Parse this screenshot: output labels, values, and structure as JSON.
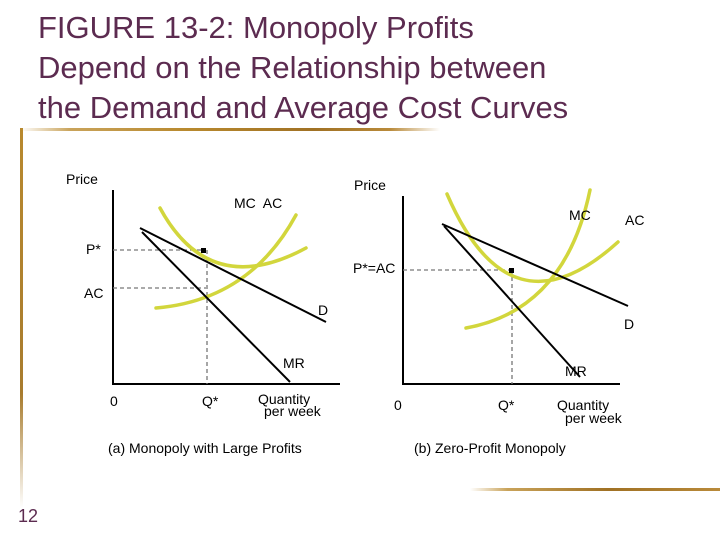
{
  "title": {
    "line1": "FIGURE 13-2: Monopoly Profits",
    "line2": "Depend on the Relationship between",
    "line3": "the Demand and Average Cost Curves"
  },
  "slide_number": "12",
  "colors": {
    "title": "#5c2b50",
    "cost_curve": "#d2d63c",
    "demand_line": "#000000",
    "guide_line": "#777777",
    "rule": "#b8892e"
  },
  "panel_a": {
    "caption": "(a) Monopoly with Large Profits",
    "y_axis_label": "Price",
    "curve_label_mc_ac": "MC  AC",
    "price_label": "P*",
    "ac_label": "AC",
    "demand_label": "D",
    "mr_label": "MR",
    "origin_label": "0",
    "quantity_label": "Q*",
    "x_axis_label_line1": "Quantity",
    "x_axis_label_line2": "per week"
  },
  "panel_b": {
    "caption": "(b) Zero-Profit Monopoly",
    "y_axis_label": "Price",
    "mc_label": "MC",
    "ac_label": "AC",
    "price_label": "P*=AC",
    "demand_label": "D",
    "mr_label": "MR",
    "origin_label": "0",
    "quantity_label": "Q*",
    "x_axis_label_line1": "Quantity",
    "x_axis_label_line2": "per week"
  }
}
